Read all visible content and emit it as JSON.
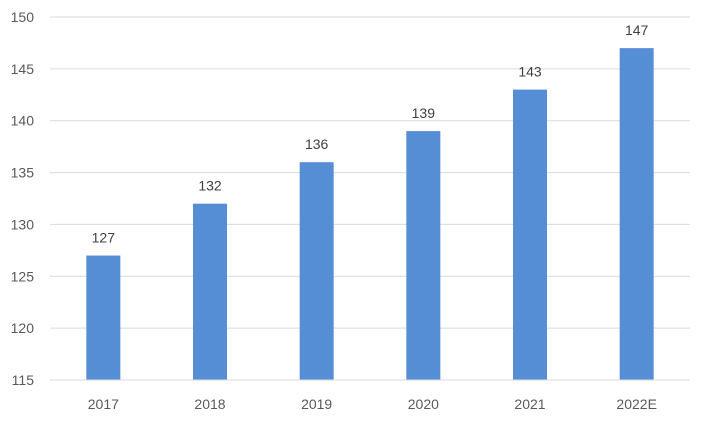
{
  "chart_data": {
    "type": "bar",
    "title": "",
    "xlabel": "",
    "ylabel": "",
    "categories": [
      "2017",
      "2018",
      "2019",
      "2020",
      "2021",
      "2022E"
    ],
    "values": [
      127,
      132,
      136,
      139,
      143,
      147
    ],
    "data_labels": [
      "127",
      "132",
      "136",
      "139",
      "143",
      "147"
    ],
    "ylim": [
      115,
      150
    ],
    "yticks": [
      "115",
      "120",
      "125",
      "130",
      "135",
      "140",
      "145",
      "150"
    ],
    "grid": true,
    "legend": "none",
    "bar_color": "#558ed5"
  }
}
